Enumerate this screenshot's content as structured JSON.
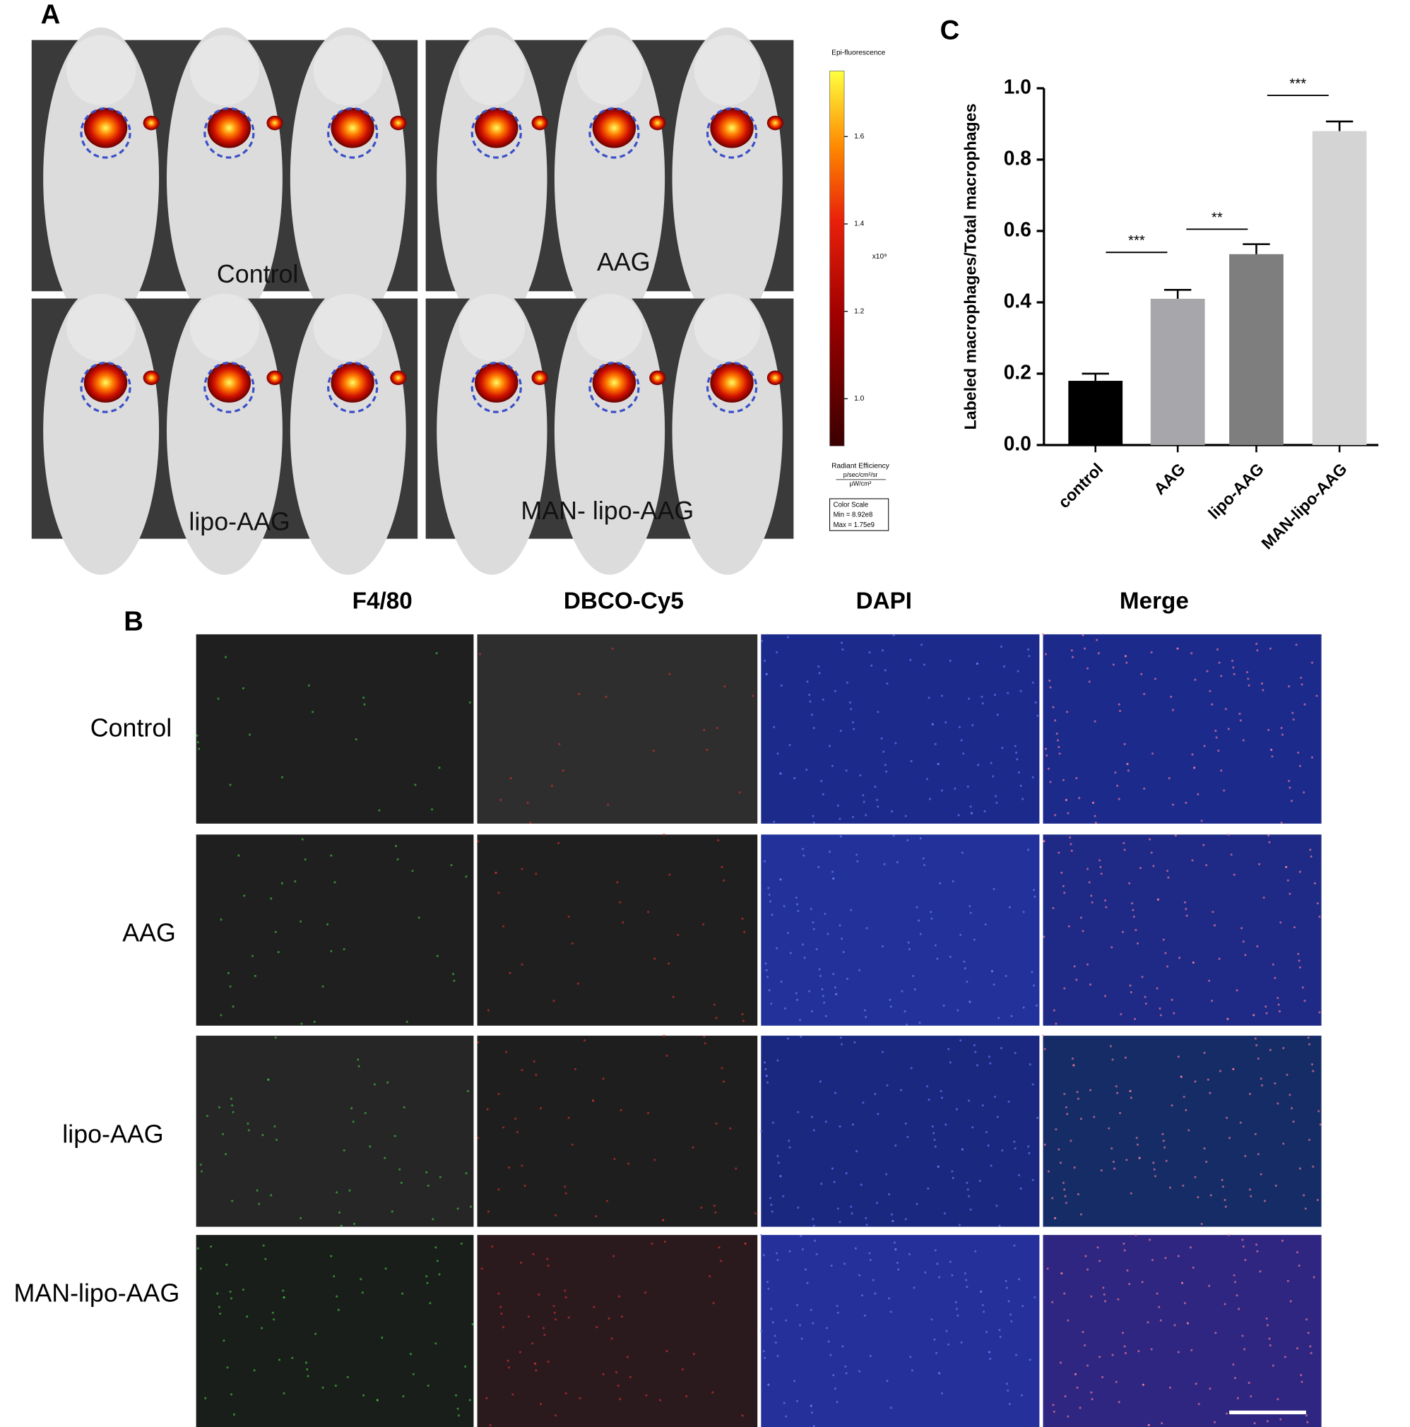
{
  "panel_a": {
    "label": "A",
    "images": [
      "Control",
      "AAG",
      "lipo-AAG",
      "MAN- lipo-AAG"
    ],
    "colorbar": {
      "title": "Epi-fluorescence",
      "lim": [
        0.892,
        1.75
      ],
      "ticks": [
        1.6,
        1.4,
        1.2,
        {
          "value": 1,
          "label": "1.0"
        }
      ],
      "multiplier": "x10⁹",
      "unit_name": "Radiant Efficiency",
      "unit_num": "p/sec/cm²/sr",
      "unit_den": "μW/cm²",
      "scale_title": "Color Scale",
      "scale_min": "Min = 8.92e8",
      "scale_max": "Max = 1.75e9"
    }
  },
  "panel_b": {
    "label": "B",
    "columns": [
      "F4/80",
      "DBCO-Cy5",
      "DAPI",
      "Merge"
    ],
    "rows": [
      "Control",
      "AAG",
      "lipo-AAG",
      "MAN-lipo-AAG"
    ]
  },
  "chart_data": {
    "type": "bar",
    "label": "C",
    "ylabel": "Labeled macrophages/Total macrophages",
    "categories": [
      "control",
      "AAG",
      "lipo-AAG",
      "MAN-lipo-AAG"
    ],
    "values": [
      0.18,
      0.41,
      0.535,
      0.88
    ],
    "errors": [
      0.02,
      0.025,
      0.028,
      0.027
    ],
    "colors": [
      "#000000",
      "#a7a7ab",
      "#7e7e7e",
      "#d4d4d4"
    ],
    "ylim": [
      0,
      1
    ],
    "yticks": [
      {
        "value": 0,
        "label": "0.0"
      },
      0.2,
      0.4,
      0.6,
      0.8,
      {
        "value": 1,
        "label": "1.0"
      }
    ],
    "annotations": [
      {
        "text": "***",
        "between": [
          "control",
          "AAG"
        ],
        "y": 0.54
      },
      {
        "text": "**",
        "between": [
          "AAG",
          "lipo-AAG"
        ],
        "y": 0.605
      },
      {
        "text": "***",
        "between": [
          "lipo-AAG",
          "MAN-lipo-AAG"
        ],
        "y": 0.98
      }
    ]
  }
}
